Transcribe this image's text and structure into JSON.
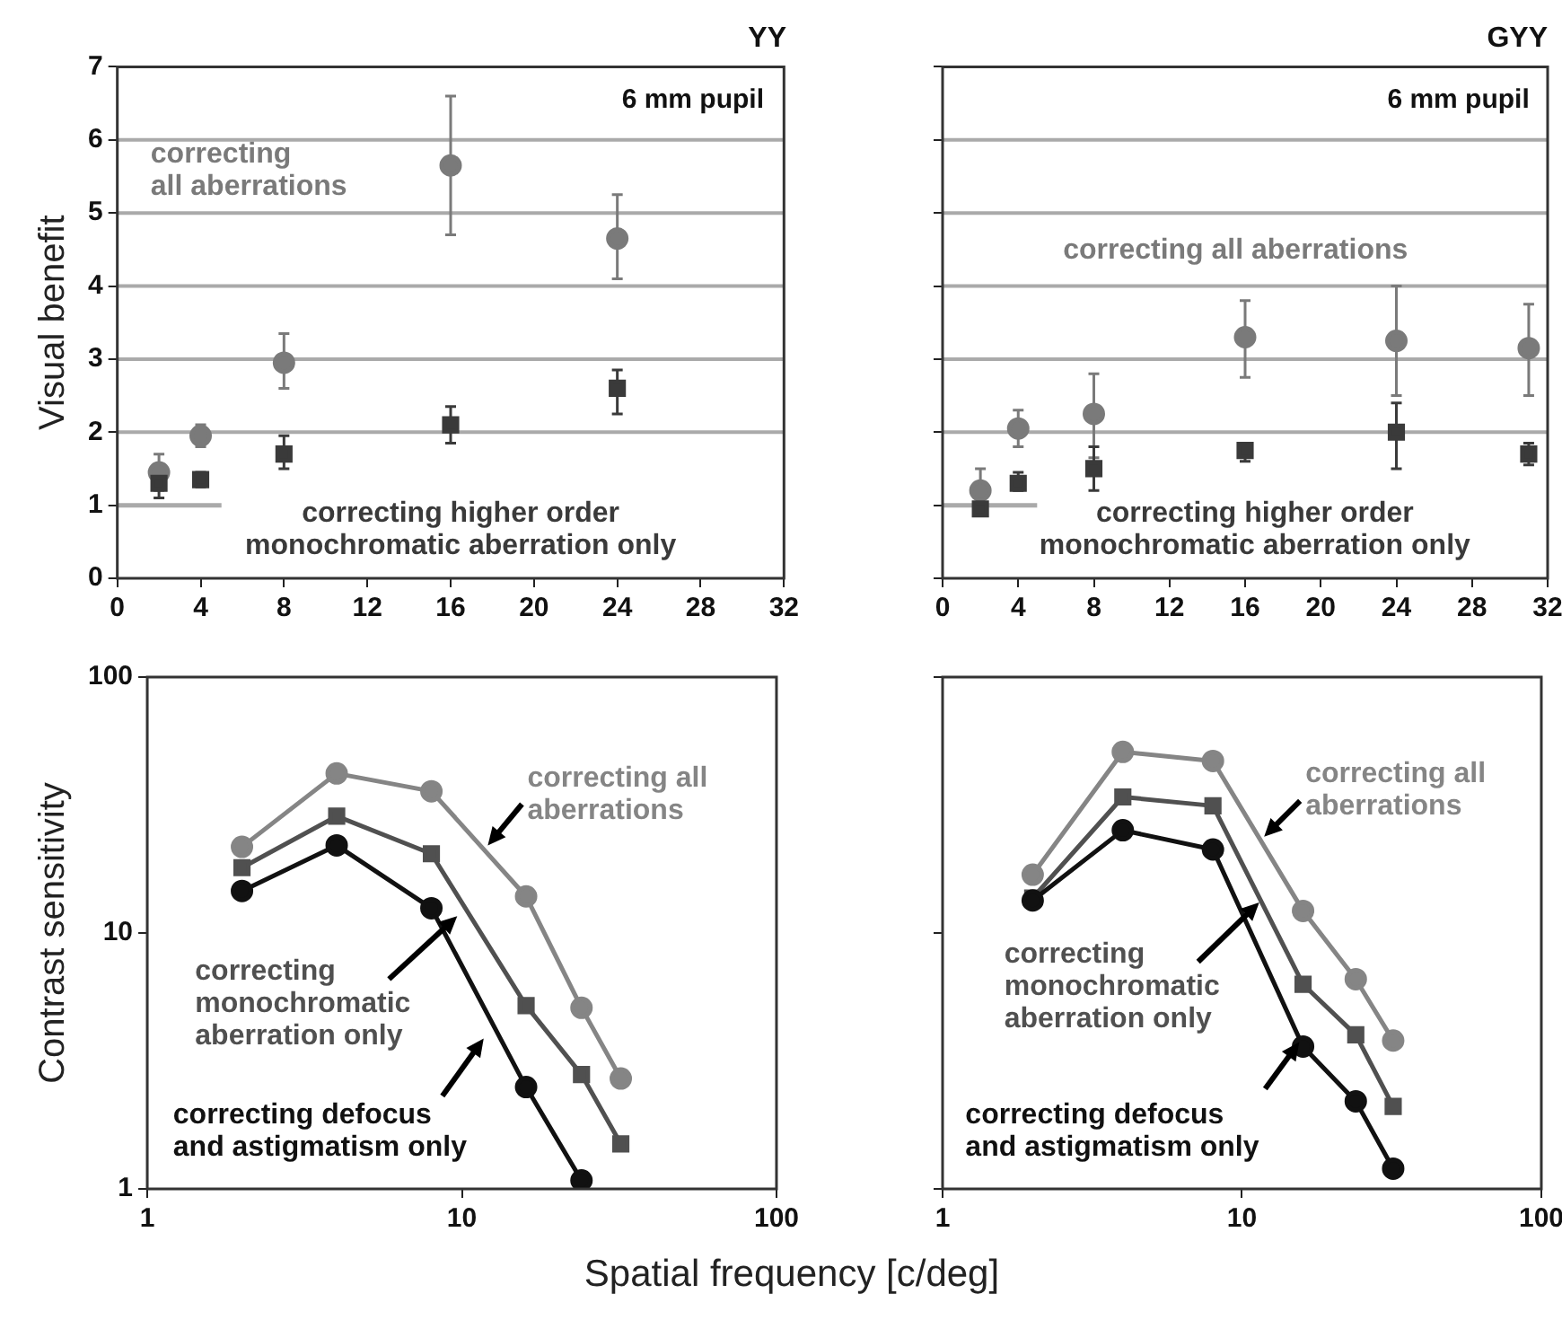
{
  "chart_data": [
    {
      "type": "scatter",
      "title": "YY",
      "ylabel": "Visual benefit",
      "x": [
        2,
        4,
        8,
        16,
        24
      ],
      "xlim": [
        0,
        32
      ],
      "xticks": [
        0,
        4,
        8,
        12,
        16,
        20,
        24,
        28,
        32
      ],
      "ylim": [
        0,
        7
      ],
      "yticks": [
        0,
        1,
        2,
        3,
        4,
        5,
        6,
        7
      ],
      "grid": false,
      "annotations": [
        "6 mm pupil"
      ],
      "ref_lines": [
        {
          "axis": "y",
          "value": 2,
          "color": "#aaaaaa"
        },
        {
          "axis": "y",
          "value": 3,
          "color": "#aaaaaa"
        },
        {
          "axis": "y",
          "value": 4,
          "color": "#aaaaaa"
        },
        {
          "axis": "y",
          "value": 5,
          "color": "#aaaaaa"
        },
        {
          "axis": "y",
          "value": 6,
          "color": "#aaaaaa"
        }
      ],
      "series": [
        {
          "type": "line",
          "marker": "none",
          "x": [
            0,
            5
          ],
          "values": [
            1,
            1
          ],
          "color": "#aaaaaa"
        },
        {
          "name": "correcting\nall aberrations",
          "marker": "circle",
          "color": "#7a7a7a",
          "values": [
            1.45,
            1.95,
            2.95,
            5.65,
            4.65
          ],
          "errors": [
            [
              1.2,
              1.7
            ],
            [
              1.8,
              2.1
            ],
            [
              2.6,
              3.35
            ],
            [
              4.7,
              6.6
            ],
            [
              4.1,
              5.25
            ]
          ]
        },
        {
          "name": "correcting higher order\nmonochromatic aberration only",
          "marker": "square",
          "color": "#3a3a3a",
          "values": [
            1.3,
            1.35,
            1.7,
            2.1,
            2.6
          ],
          "errors": [
            [
              1.1,
              1.3
            ],
            [
              1.25,
              1.45
            ],
            [
              1.5,
              1.95
            ],
            [
              1.85,
              2.35
            ],
            [
              2.25,
              2.85
            ]
          ]
        }
      ]
    },
    {
      "type": "scatter",
      "title": "GYY",
      "x": [
        2,
        4,
        8,
        16,
        24,
        31
      ],
      "xlim": [
        0,
        32
      ],
      "xticks": [
        0,
        4,
        8,
        12,
        16,
        20,
        24,
        28,
        32
      ],
      "ylim": [
        0,
        7
      ],
      "yticks": [
        0,
        1,
        2,
        3,
        4,
        5,
        6,
        7
      ],
      "tick_labels": "x",
      "grid": false,
      "annotations": [
        "6 mm pupil"
      ],
      "ref_lines": [
        {
          "axis": "y",
          "value": 2,
          "color": "#aaaaaa"
        },
        {
          "axis": "y",
          "value": 3,
          "color": "#aaaaaa"
        },
        {
          "axis": "y",
          "value": 4,
          "color": "#aaaaaa"
        },
        {
          "axis": "y",
          "value": 5,
          "color": "#aaaaaa"
        },
        {
          "axis": "y",
          "value": 6,
          "color": "#aaaaaa"
        }
      ],
      "series": [
        {
          "type": "line",
          "marker": "none",
          "x": [
            0,
            5
          ],
          "values": [
            1,
            1
          ],
          "color": "#aaaaaa"
        },
        {
          "name": "correcting all aberrations",
          "marker": "circle",
          "color": "#7a7a7a",
          "values": [
            1.2,
            2.05,
            2.25,
            3.3,
            3.25,
            3.15
          ],
          "errors": [
            [
              1.2,
              1.5
            ],
            [
              1.8,
              2.3
            ],
            [
              1.65,
              2.8
            ],
            [
              2.75,
              3.8
            ],
            [
              2.5,
              4.0
            ],
            [
              2.5,
              3.75
            ]
          ]
        },
        {
          "name": "correcting higher order\nmonochromatic aberration only",
          "marker": "square",
          "color": "#3a3a3a",
          "values": [
            0.95,
            1.3,
            1.5,
            1.75,
            2.0,
            1.7
          ],
          "errors": [
            null,
            [
              1.2,
              1.45
            ],
            [
              1.2,
              1.8
            ],
            [
              1.6,
              1.85
            ],
            [
              1.5,
              2.4
            ],
            [
              1.55,
              1.85
            ]
          ]
        }
      ]
    },
    {
      "type": "line",
      "ylabel": "Contrast sensitivity",
      "xlabel": "Spatial frequency [c/deg]",
      "log": "xy",
      "xlim": [
        1,
        100
      ],
      "xticks": [
        1,
        10,
        100
      ],
      "ylim": [
        1,
        100
      ],
      "yticks": [
        1,
        10,
        100
      ],
      "grid": false,
      "series": [
        {
          "name": "correcting all\naberrations",
          "marker": "circle",
          "color": "#858585",
          "x": [
            2,
            4,
            8,
            16,
            24,
            32
          ],
          "values": [
            21.7,
            42,
            35.8,
            13.9,
            5.1,
            2.7
          ]
        },
        {
          "name": "correcting\nmonochromatic\naberration only",
          "marker": "square",
          "color": "#505050",
          "x": [
            2,
            4,
            8,
            16,
            24,
            32
          ],
          "values": [
            18,
            28.6,
            20.4,
            5.2,
            2.8,
            1.5
          ]
        },
        {
          "name": "correcting defocus\nand astigmatism only",
          "marker": "circle",
          "color": "#111111",
          "x": [
            2,
            4,
            8,
            16,
            24
          ],
          "values": [
            14.6,
            22,
            12.5,
            2.5,
            1.08
          ]
        }
      ]
    },
    {
      "type": "line",
      "log": "xy",
      "xlim": [
        1,
        100
      ],
      "xticks": [
        1,
        10,
        100
      ],
      "ylim": [
        1,
        100
      ],
      "yticks": [
        1,
        10,
        100
      ],
      "tick_labels": "x",
      "grid": false,
      "series": [
        {
          "name": "correcting all\naberrations",
          "marker": "circle",
          "color": "#858585",
          "x": [
            2,
            4,
            8,
            16,
            24,
            32
          ],
          "values": [
            16.9,
            51,
            47,
            12.2,
            6.6,
            3.8
          ]
        },
        {
          "name": "correcting\nmonochromatic\naberration only",
          "marker": "square",
          "color": "#505050",
          "x": [
            2,
            4,
            8,
            16,
            24,
            32
          ],
          "values": [
            13.7,
            34,
            31.4,
            6.3,
            4.0,
            2.1
          ]
        },
        {
          "name": "correcting defocus\nand astigmatism only",
          "marker": "circle",
          "color": "#111111",
          "x": [
            2,
            4,
            8,
            16,
            24,
            32
          ],
          "values": [
            13.4,
            25.2,
            21.2,
            3.6,
            2.2,
            1.2
          ]
        }
      ]
    }
  ]
}
